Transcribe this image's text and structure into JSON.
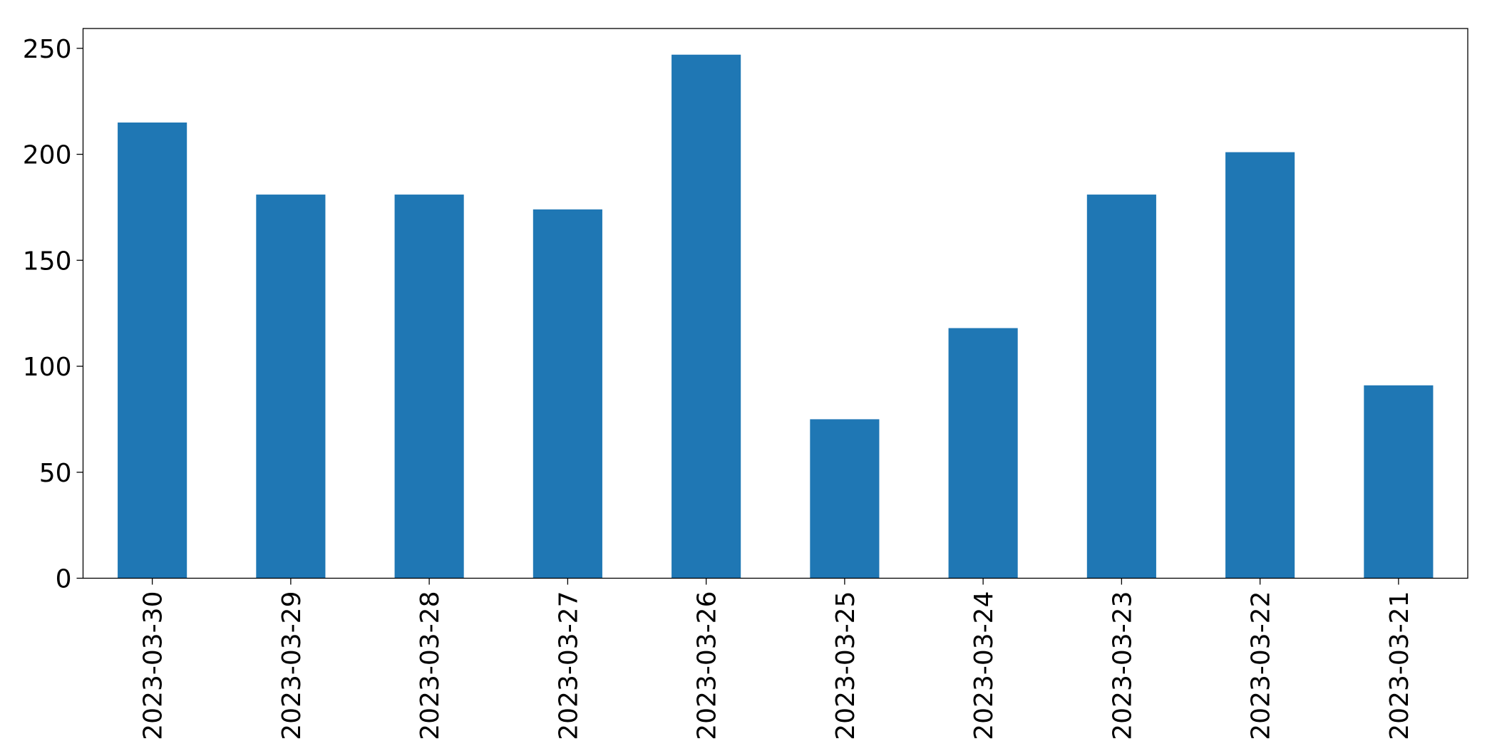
{
  "chart_data": {
    "type": "bar",
    "categories": [
      "2023-03-30",
      "2023-03-29",
      "2023-03-28",
      "2023-03-27",
      "2023-03-26",
      "2023-03-25",
      "2023-03-24",
      "2023-03-23",
      "2023-03-22",
      "2023-03-21"
    ],
    "values": [
      215,
      181,
      181,
      174,
      247,
      75,
      118,
      181,
      201,
      91
    ],
    "color": "#1f77b4",
    "ylim": [
      0,
      259.35
    ],
    "yticks": [
      0,
      50,
      100,
      150,
      200,
      250
    ],
    "grid": false
  }
}
